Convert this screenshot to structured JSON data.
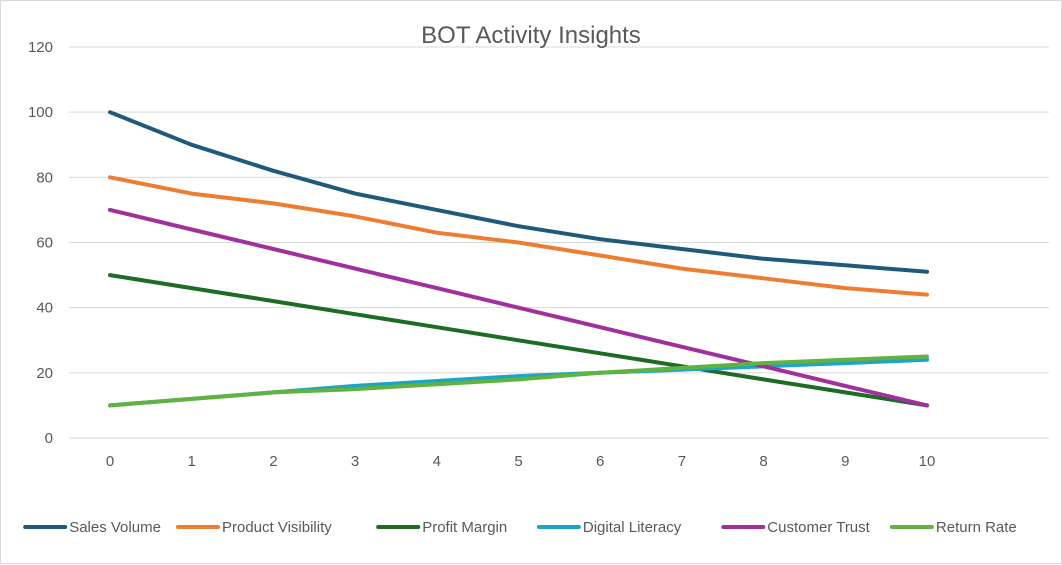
{
  "chart_data": {
    "type": "line",
    "title": "BOT Activity Insights",
    "xlabel": "",
    "ylabel": "",
    "x": [
      0,
      1,
      2,
      3,
      4,
      5,
      6,
      7,
      8,
      9,
      10
    ],
    "ylim": [
      0,
      120
    ],
    "yticks": [
      0,
      20,
      40,
      60,
      80,
      100,
      120
    ],
    "grid": true,
    "legend_position": "bottom",
    "series": [
      {
        "name": "Sales Volume",
        "color": "#1F5A7A",
        "values": [
          100,
          90,
          82,
          75,
          70,
          65,
          61,
          58,
          55,
          53,
          51
        ]
      },
      {
        "name": "Product Visibility",
        "color": "#ED7D31",
        "values": [
          80,
          75,
          72,
          68,
          63,
          60,
          56,
          52,
          49,
          46,
          44
        ]
      },
      {
        "name": "Profit Margin",
        "color": "#1E6B25",
        "values": [
          50,
          46,
          42,
          38,
          34,
          30,
          26,
          22,
          18,
          14,
          10
        ]
      },
      {
        "name": "Digital Literacy",
        "color": "#1FA4C9",
        "values": [
          10,
          12,
          14,
          16,
          17.5,
          19,
          20,
          21,
          22,
          23,
          24
        ]
      },
      {
        "name": "Customer Trust",
        "color": "#A0309E",
        "values": [
          70,
          64,
          58,
          52,
          46,
          40,
          34,
          28,
          22,
          16,
          10
        ]
      },
      {
        "name": "Return Rate",
        "color": "#5FB33E",
        "values": [
          10,
          12,
          14,
          15,
          16.5,
          18,
          20,
          21.5,
          23,
          24,
          25
        ]
      }
    ]
  }
}
